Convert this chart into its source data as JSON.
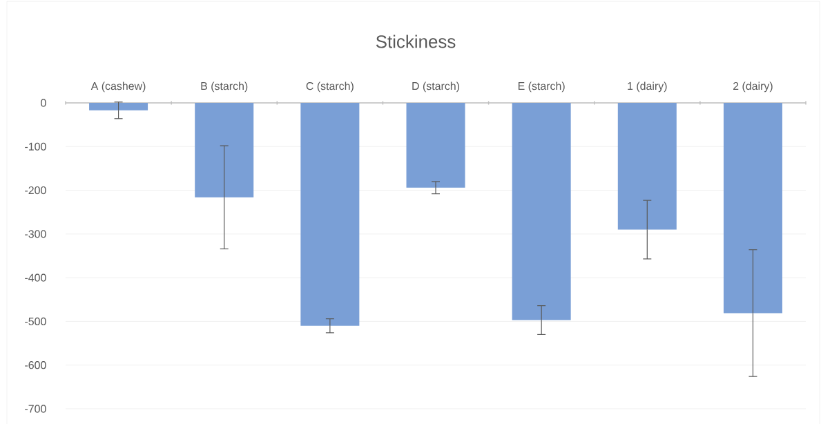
{
  "chart_data": {
    "type": "bar",
    "title": "Stickiness",
    "categories": [
      "A (cashew)",
      "B (starch)",
      "C (starch)",
      "D (starch)",
      "E (starch)",
      "1 (dairy)",
      "2 (dairy)"
    ],
    "values": [
      -17,
      -216,
      -510,
      -194,
      -497,
      -290,
      -481
    ],
    "errors": [
      19,
      118,
      16,
      14,
      33,
      67,
      145
    ],
    "color": "#7a9fd6",
    "ylim": [
      -700,
      0
    ],
    "yticks": [
      0,
      -100,
      -200,
      -300,
      -400,
      -500,
      -600,
      -700
    ],
    "grid": "y"
  }
}
